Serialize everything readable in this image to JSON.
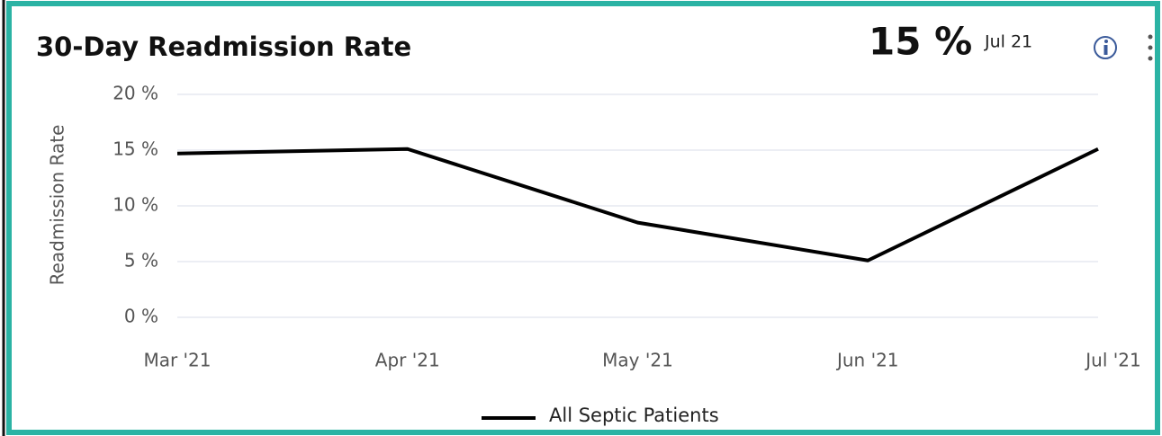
{
  "chart_data": {
    "type": "line",
    "title": "30-Day Readmission Rate",
    "kpi": {
      "value": "15 %",
      "period": "Jul 21"
    },
    "ylabel": "Readmission Rate",
    "categories": [
      "Mar '21",
      "Apr '21",
      "May '21",
      "Jun '21",
      "Jul '21"
    ],
    "series": [
      {
        "name": "All Septic Patients",
        "color": "#000000",
        "values": [
          14.7,
          15.1,
          8.5,
          5.1,
          15.1
        ]
      }
    ],
    "ylim": [
      0,
      20
    ],
    "yticks": [
      {
        "value": 0,
        "label": "0 %"
      },
      {
        "value": 5,
        "label": "5 %"
      },
      {
        "value": 10,
        "label": "10 %"
      },
      {
        "value": 15,
        "label": "15 %"
      },
      {
        "value": 20,
        "label": "20 %"
      }
    ],
    "grid": true,
    "legend": "bottom"
  }
}
